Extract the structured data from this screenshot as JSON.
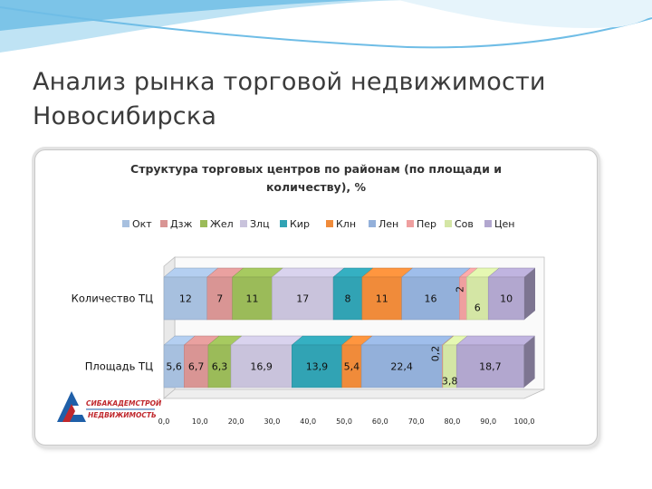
{
  "slide": {
    "title": "Анализ рынка торговой недвижимости Новосибирска"
  },
  "logo": {
    "lines": [
      "СИБАКАДЕМСТРОЙ",
      "НЕДВИЖИМОСТЬ"
    ]
  },
  "colors": {
    "swoosh": "#4aa8d8",
    "frame": "#c8c8c8"
  },
  "chart_data": {
    "type": "bar",
    "orientation": "horizontal",
    "stacked": true,
    "style": "3d",
    "title": "Структура торговых центров по районам (по площади и количеству), %",
    "title_lines": [
      "Структура торговых центров по районам (по площади и",
      "количеству), %"
    ],
    "categories": [
      "Количество ТЦ",
      "Площадь ТЦ"
    ],
    "xlim": [
      0,
      100
    ],
    "x_ticks": [
      "0,0",
      "10,0",
      "20,0",
      "30,0",
      "40,0",
      "50,0",
      "60,0",
      "70,0",
      "80,0",
      "90,0",
      "100,0"
    ],
    "legend_position": "top",
    "grid": false,
    "series": [
      {
        "name": "Окт",
        "color": "#a7c0df",
        "values": [
          12,
          5.6
        ],
        "labels": [
          "12",
          "5,6"
        ]
      },
      {
        "name": "Дзж",
        "color": "#d99594",
        "values": [
          7,
          6.7
        ],
        "labels": [
          "7",
          "6,7"
        ]
      },
      {
        "name": "Жел",
        "color": "#9bbb59",
        "values": [
          11,
          6.3
        ],
        "labels": [
          "11",
          "6,3"
        ]
      },
      {
        "name": "Злц",
        "color": "#c9c3dc",
        "values": [
          17,
          16.9
        ],
        "labels": [
          "17",
          "16,9"
        ]
      },
      {
        "name": "Кир",
        "color": "#31a3b4",
        "values": [
          8,
          13.9
        ],
        "labels": [
          "8",
          "13,9"
        ]
      },
      {
        "name": "Клн",
        "color": "#f08b3a",
        "values": [
          11,
          5.4
        ],
        "labels": [
          "11",
          "5,4"
        ]
      },
      {
        "name": "Лен",
        "color": "#93b0da",
        "values": [
          16,
          22.4
        ],
        "labels": [
          "16",
          "22,4"
        ]
      },
      {
        "name": "Пер",
        "color": "#ef9f9f",
        "values": [
          2,
          0.2
        ],
        "labels": [
          "2",
          "0,2"
        ]
      },
      {
        "name": "Сов",
        "color": "#d4e6a5",
        "values": [
          6,
          3.8
        ],
        "labels": [
          "6",
          "3,8"
        ]
      },
      {
        "name": "Цен",
        "color": "#b2a7cf",
        "values": [
          10,
          18.7
        ],
        "labels": [
          "10",
          "18,7"
        ]
      }
    ]
  }
}
